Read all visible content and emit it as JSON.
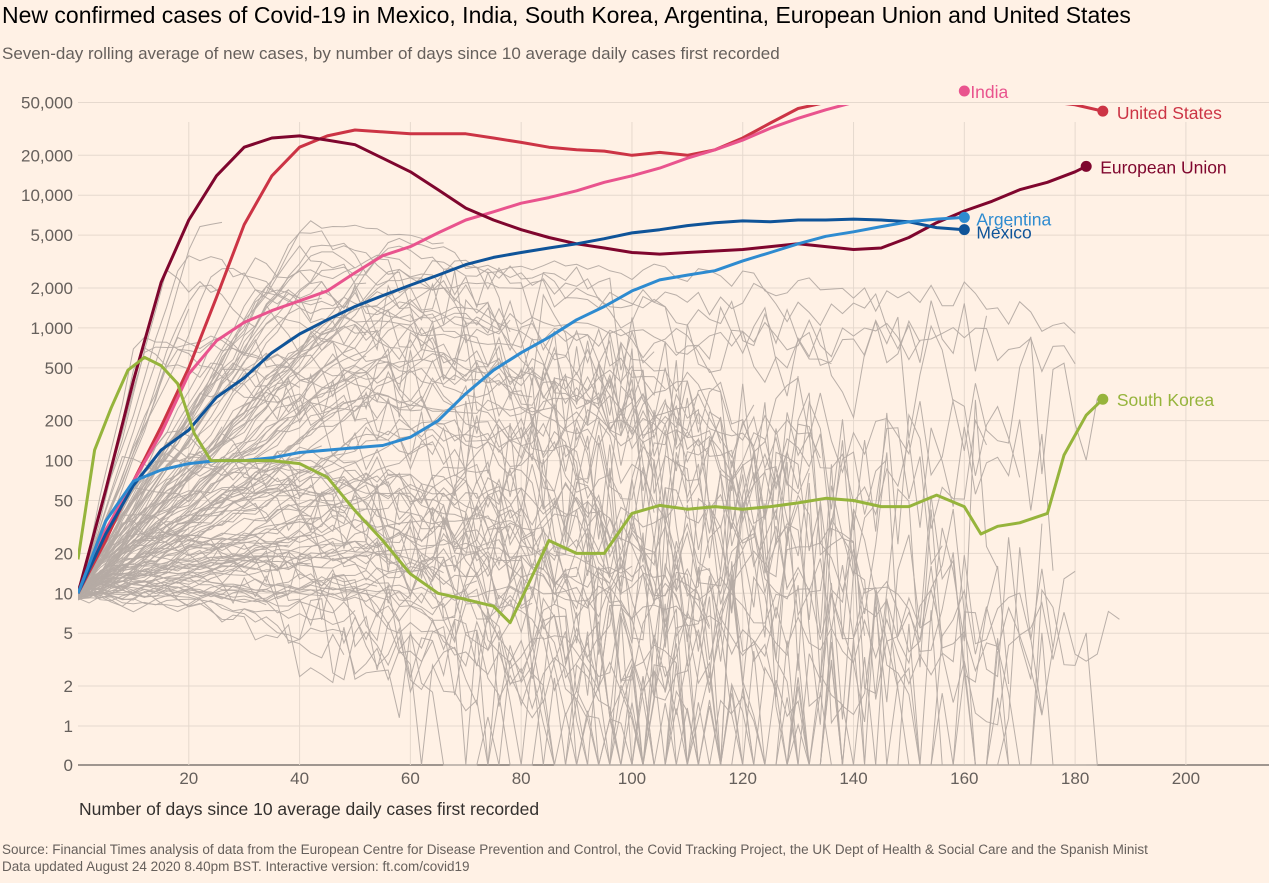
{
  "title": "New confirmed cases of Covid-19 in Mexico, India, South Korea, Argentina, European Union and United States",
  "subtitle": "Seven-day rolling average of new cases, by number of days since 10 average daily cases first recorded",
  "footer": {
    "source": "Source: Financial Times analysis of data from the European Centre for Disease Prevention and Control, the Covid Tracking Project, the UK Dept of Health & Social Care and the Spanish Minist",
    "updated": "Data updated August 24 2020 8.40pm BST. Interactive version: ft.com/covid19"
  },
  "chart_data": {
    "type": "line",
    "title": "New confirmed cases of Covid-19 in Mexico, India, South Korea, Argentina, European Union and United States",
    "xlabel": "Number of days since 10 average daily cases first recorded",
    "ylabel": "",
    "y_scale": "log",
    "xlim": [
      0,
      215
    ],
    "ylim": [
      0,
      90000
    ],
    "x_ticks": [
      "20",
      "40",
      "60",
      "80",
      "100",
      "120",
      "140",
      "160",
      "180",
      "200"
    ],
    "x_tick_values": [
      20,
      40,
      60,
      80,
      100,
      120,
      140,
      160,
      180,
      200
    ],
    "y_ticks": [
      "0",
      "1",
      "2",
      "5",
      "10",
      "20",
      "50",
      "100",
      "200",
      "500",
      "1,000",
      "2,000",
      "5,000",
      "10,000",
      "20,000",
      "50,000"
    ],
    "y_tick_values": [
      0,
      1,
      2,
      5,
      10,
      20,
      50,
      100,
      200,
      500,
      1000,
      2000,
      5000,
      10000,
      20000,
      50000
    ],
    "background_color": "#fff1e5",
    "other_countries_color": "#b5aba4",
    "series": [
      {
        "name": "United States",
        "color": "#cc3445",
        "x": [
          0,
          5,
          10,
          15,
          20,
          25,
          30,
          35,
          40,
          45,
          50,
          55,
          60,
          65,
          70,
          75,
          80,
          85,
          90,
          95,
          100,
          105,
          110,
          115,
          120,
          125,
          130,
          135,
          140,
          145,
          150,
          155,
          160,
          165,
          170,
          175,
          180,
          185
        ],
        "y": [
          10,
          25,
          70,
          180,
          500,
          1700,
          6000,
          14000,
          23000,
          28000,
          31000,
          30000,
          29000,
          29000,
          29000,
          27000,
          25000,
          23000,
          22000,
          21500,
          20000,
          21000,
          20000,
          22000,
          27000,
          35000,
          45000,
          50000,
          52000,
          57000,
          60000,
          60000,
          57000,
          53000,
          51000,
          51000,
          48000,
          43000
        ]
      },
      {
        "name": "India",
        "color": "#e9548e",
        "x": [
          0,
          5,
          10,
          15,
          20,
          25,
          30,
          35,
          40,
          45,
          50,
          55,
          60,
          65,
          70,
          75,
          80,
          85,
          90,
          95,
          100,
          105,
          110,
          115,
          120,
          125,
          130,
          135,
          140,
          145,
          150,
          155,
          160
        ],
        "y": [
          10,
          30,
          70,
          160,
          450,
          800,
          1100,
          1350,
          1600,
          1900,
          2600,
          3500,
          4100,
          5200,
          6500,
          7500,
          8700,
          9600,
          10800,
          12500,
          14000,
          16000,
          19000,
          22000,
          26000,
          32000,
          38000,
          44000,
          50000,
          55000,
          58000,
          60000,
          61000
        ]
      },
      {
        "name": "European Union",
        "color": "#7f062e",
        "x": [
          0,
          5,
          10,
          15,
          20,
          25,
          30,
          35,
          40,
          45,
          50,
          55,
          60,
          65,
          70,
          75,
          80,
          85,
          90,
          95,
          100,
          105,
          110,
          115,
          120,
          125,
          130,
          135,
          140,
          145,
          150,
          155,
          160,
          165,
          170,
          175,
          180,
          182
        ],
        "y": [
          10,
          60,
          400,
          2200,
          6500,
          14000,
          23000,
          27000,
          28000,
          26000,
          24000,
          19000,
          15000,
          11000,
          8000,
          6500,
          5500,
          4800,
          4300,
          4000,
          3700,
          3600,
          3700,
          3800,
          3900,
          4100,
          4300,
          4100,
          3900,
          4000,
          4800,
          6200,
          7600,
          9000,
          11000,
          12500,
          15000,
          16500
        ]
      },
      {
        "name": "Mexico",
        "color": "#0f5499",
        "x": [
          0,
          5,
          10,
          15,
          20,
          25,
          30,
          35,
          40,
          45,
          50,
          55,
          60,
          65,
          70,
          75,
          80,
          85,
          90,
          95,
          100,
          105,
          110,
          115,
          120,
          125,
          130,
          135,
          140,
          145,
          150,
          155,
          160
        ],
        "y": [
          10,
          28,
          65,
          120,
          170,
          300,
          420,
          650,
          900,
          1150,
          1450,
          1750,
          2100,
          2500,
          3000,
          3400,
          3700,
          4000,
          4300,
          4700,
          5200,
          5500,
          5900,
          6200,
          6400,
          6300,
          6500,
          6500,
          6600,
          6500,
          6300,
          5700,
          5500
        ]
      },
      {
        "name": "Argentina",
        "color": "#2e8bd0",
        "x": [
          0,
          5,
          10,
          15,
          20,
          25,
          30,
          35,
          40,
          45,
          50,
          55,
          60,
          65,
          70,
          75,
          80,
          85,
          90,
          95,
          100,
          105,
          110,
          115,
          120,
          125,
          130,
          135,
          140,
          145,
          150,
          155,
          160
        ],
        "y": [
          10,
          35,
          70,
          85,
          95,
          100,
          100,
          105,
          115,
          120,
          125,
          130,
          150,
          200,
          320,
          480,
          650,
          850,
          1150,
          1450,
          1900,
          2300,
          2500,
          2700,
          3200,
          3700,
          4300,
          4900,
          5300,
          5800,
          6300,
          6600,
          6800
        ]
      },
      {
        "name": "South Korea",
        "color": "#96b43c",
        "x": [
          0,
          3,
          6,
          9,
          12,
          15,
          18,
          21,
          24,
          27,
          30,
          35,
          40,
          45,
          50,
          55,
          60,
          65,
          70,
          75,
          78,
          80,
          85,
          90,
          95,
          100,
          105,
          110,
          115,
          120,
          125,
          130,
          135,
          140,
          145,
          150,
          155,
          160,
          163,
          166,
          170,
          175,
          178,
          182,
          185
        ],
        "y": [
          18,
          120,
          250,
          480,
          600,
          520,
          380,
          160,
          100,
          100,
          100,
          100,
          95,
          75,
          42,
          25,
          14,
          10,
          9,
          8,
          6,
          9,
          25,
          20,
          20,
          40,
          46,
          43,
          45,
          43,
          45,
          48,
          52,
          50,
          45,
          45,
          55,
          45,
          28,
          32,
          34,
          40,
          110,
          220,
          290
        ]
      }
    ]
  }
}
